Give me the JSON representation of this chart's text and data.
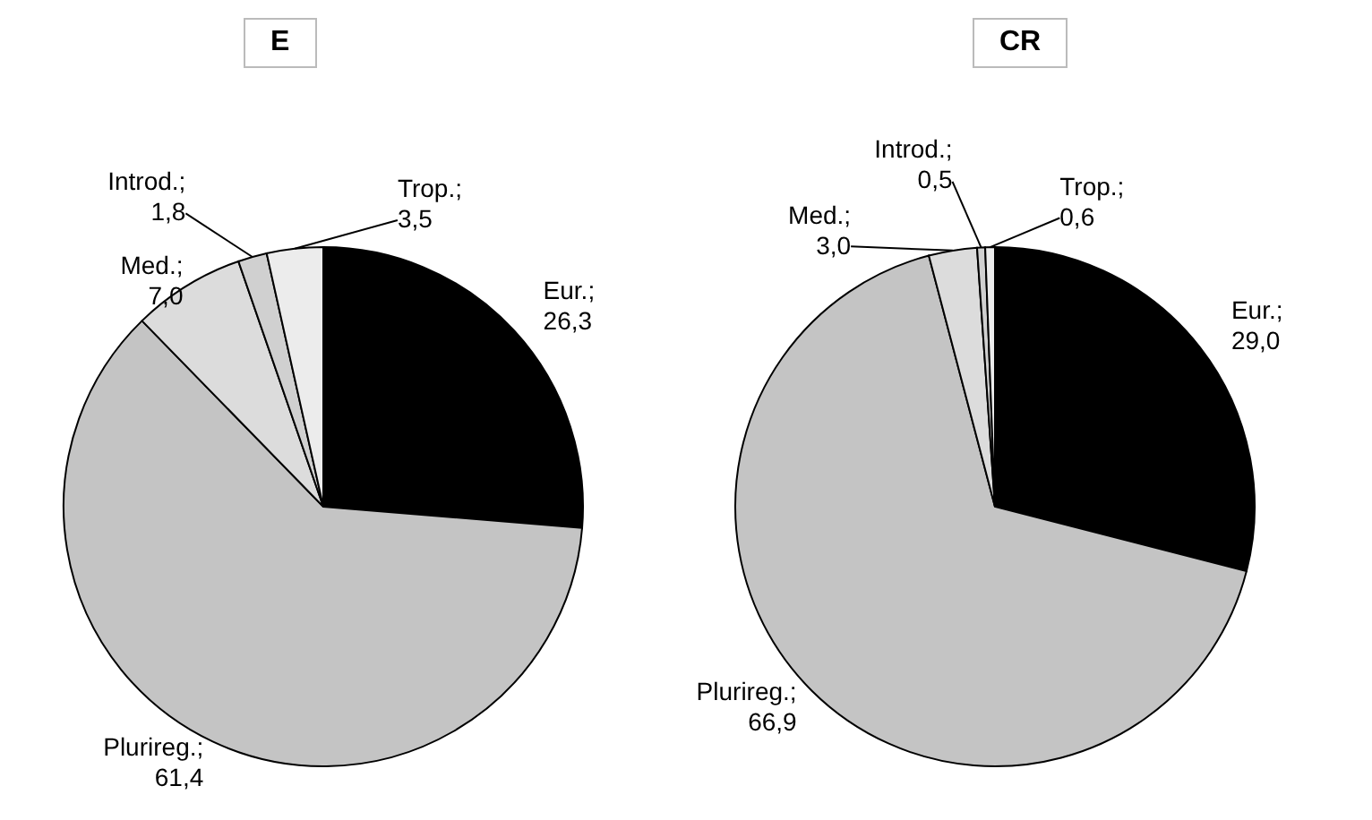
{
  "chart_data": [
    {
      "type": "pie",
      "title": "E",
      "categories": [
        "Eur.",
        "Plurireg.",
        "Med.",
        "Introd.",
        "Trop."
      ],
      "values": [
        26.3,
        61.4,
        7.0,
        1.8,
        3.5
      ],
      "value_labels": [
        "; 26,3",
        "; 61,4",
        "; 7,0",
        "; 1,8",
        "; 3,5"
      ],
      "colors": [
        "#000000",
        "#c4c4c4",
        "#dcdcdc",
        "#d0d0d0",
        "#ececec"
      ]
    },
    {
      "type": "pie",
      "title": "CR",
      "categories": [
        "Eur.",
        "Plurireg.",
        "Med.",
        "Introd.",
        "Trop."
      ],
      "values": [
        29.0,
        66.9,
        3.0,
        0.5,
        0.6
      ],
      "value_labels": [
        "; 29,0",
        "; 66,9",
        "; 3,0",
        "; 0,5",
        "; 0,6"
      ],
      "colors": [
        "#000000",
        "#c4c4c4",
        "#dcdcdc",
        "#d0d0d0",
        "#ececec"
      ]
    }
  ]
}
